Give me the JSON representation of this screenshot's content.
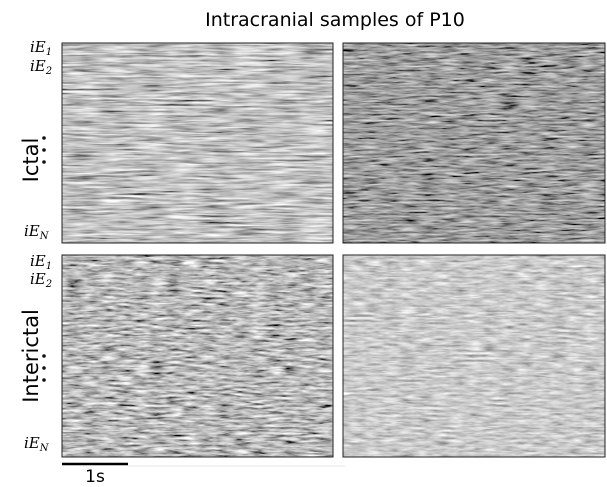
{
  "title": "Intracranial samples of P10",
  "rows": [
    {
      "label": "Ictal",
      "electrodes": [
        {
          "main": "iE",
          "sub": "1"
        },
        {
          "main": "iE",
          "sub": "2"
        },
        {
          "main": "iE",
          "sub": "N"
        }
      ]
    },
    {
      "label": "Interictal",
      "electrodes": [
        {
          "main": "iE",
          "sub": "1"
        },
        {
          "main": "iE",
          "sub": "2"
        },
        {
          "main": "iE",
          "sub": "N"
        }
      ]
    }
  ],
  "scale_bar": "1s"
}
